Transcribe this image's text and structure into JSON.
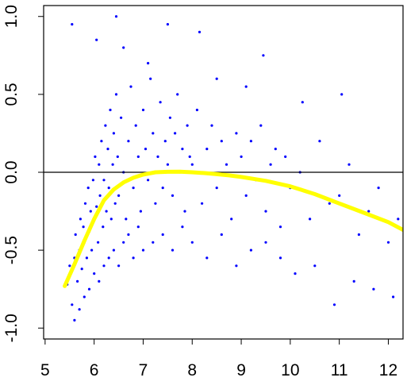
{
  "chart_data": {
    "type": "scatter",
    "title": "",
    "xlabel": "",
    "ylabel": "",
    "xlim": [
      4.97,
      12.3
    ],
    "ylim": [
      -1.07,
      1.07
    ],
    "xticks": [
      5,
      6,
      7,
      8,
      9,
      10,
      11,
      12
    ],
    "xtick_labels": [
      "5",
      "6",
      "7",
      "8",
      "9",
      "10",
      "11",
      "12"
    ],
    "yticks": [
      -1.0,
      -0.5,
      0.0,
      0.5,
      1.0
    ],
    "ytick_labels": [
      "-1.0",
      "-0.5",
      "0.0",
      "0.5",
      "1.0"
    ],
    "grid": false,
    "reference_line": {
      "y": 0,
      "color": "#000000"
    },
    "point_color": "#0000ff",
    "trend_color": "#ffff00",
    "series": [
      {
        "kind": "points",
        "x": [
          5.45,
          5.5,
          5.55,
          5.6,
          5.62,
          5.66,
          5.7,
          5.72,
          5.75,
          5.78,
          5.8,
          5.82,
          5.85,
          5.88,
          5.9,
          5.93,
          5.95,
          5.98,
          6.0,
          6.02,
          6.05,
          6.08,
          6.1,
          6.12,
          6.15,
          6.18,
          6.2,
          6.23,
          6.25,
          6.28,
          6.3,
          6.33,
          6.35,
          6.38,
          6.4,
          6.43,
          6.45,
          6.48,
          6.5,
          6.55,
          6.6,
          6.65,
          6.7,
          6.75,
          6.8,
          6.85,
          6.9,
          6.95,
          7.0,
          7.05,
          7.1,
          7.15,
          7.2,
          7.25,
          7.3,
          7.35,
          7.4,
          7.45,
          7.5,
          7.55,
          7.6,
          7.65,
          7.7,
          7.75,
          7.8,
          7.85,
          7.9,
          7.95,
          8.0,
          8.1,
          8.2,
          8.3,
          8.4,
          8.5,
          8.6,
          8.7,
          8.8,
          8.9,
          9.0,
          9.1,
          9.2,
          9.3,
          9.4,
          9.5,
          9.6,
          9.7,
          9.8,
          9.9,
          10.0,
          10.2,
          10.4,
          10.6,
          10.8,
          11.0,
          11.2,
          11.4,
          11.6,
          11.8,
          12.0,
          12.2,
          5.6,
          5.7,
          5.8,
          5.9,
          6.0,
          6.1,
          6.2,
          6.3,
          6.4,
          6.5,
          6.6,
          6.7,
          6.8,
          6.9,
          7.0,
          7.2,
          7.4,
          7.6,
          7.8,
          8.0,
          8.3,
          8.6,
          8.9,
          9.2,
          9.5,
          9.8,
          10.1,
          10.5,
          10.9,
          11.3,
          11.7,
          12.1,
          6.45,
          7.5,
          8.15,
          9.45,
          5.55,
          6.05,
          6.6,
          7.1,
          8.5,
          9.1,
          10.25,
          11.05
        ],
        "y": [
          -0.72,
          -0.6,
          -0.85,
          -0.55,
          -0.4,
          -0.7,
          -0.5,
          -0.3,
          -0.62,
          -0.35,
          -0.45,
          -0.2,
          -0.55,
          -0.1,
          -0.38,
          -0.25,
          -0.5,
          -0.05,
          -0.3,
          0.1,
          -0.22,
          -0.45,
          0.05,
          -0.15,
          0.2,
          -0.35,
          -0.05,
          0.3,
          -0.25,
          0.15,
          -0.1,
          0.4,
          -0.3,
          0.05,
          0.25,
          -0.2,
          0.5,
          0.1,
          -0.15,
          0.35,
          0.0,
          -0.3,
          0.2,
          0.55,
          -0.1,
          0.3,
          0.1,
          -0.25,
          0.4,
          0.15,
          -0.05,
          0.6,
          0.25,
          -0.2,
          0.1,
          0.45,
          -0.1,
          0.2,
          0.05,
          0.35,
          -0.15,
          0.25,
          0.5,
          0.0,
          0.15,
          -0.25,
          0.3,
          0.1,
          0.05,
          0.4,
          -0.2,
          0.15,
          0.3,
          -0.1,
          0.2,
          0.05,
          -0.3,
          0.25,
          0.1,
          -0.15,
          0.2,
          -0.05,
          0.3,
          -0.25,
          0.05,
          0.15,
          -0.35,
          0.1,
          -0.1,
          0.0,
          -0.3,
          0.2,
          -0.2,
          -0.15,
          0.05,
          -0.4,
          -0.25,
          -0.1,
          -0.45,
          -0.3,
          -0.95,
          -0.88,
          -0.8,
          -0.75,
          -0.65,
          -0.7,
          -0.6,
          -0.55,
          -0.5,
          -0.6,
          -0.45,
          -0.4,
          -0.55,
          -0.35,
          -0.5,
          -0.45,
          -0.4,
          -0.5,
          -0.35,
          -0.45,
          -0.55,
          -0.4,
          -0.6,
          -0.5,
          -0.45,
          -0.55,
          -0.65,
          -0.6,
          -0.85,
          -0.7,
          -0.75,
          -0.8,
          1.0,
          0.95,
          0.9,
          0.75,
          0.95,
          0.85,
          0.8,
          0.7,
          0.6,
          0.55,
          0.45,
          0.5
        ]
      },
      {
        "kind": "trend",
        "x": [
          5.4,
          5.6,
          5.8,
          6.0,
          6.2,
          6.4,
          6.6,
          6.8,
          7.0,
          7.25,
          7.5,
          7.75,
          8.0,
          8.25,
          8.5,
          8.75,
          9.0,
          9.5,
          10.0,
          10.5,
          11.0,
          11.5,
          12.0,
          12.3
        ],
        "y": [
          -0.73,
          -0.59,
          -0.44,
          -0.3,
          -0.18,
          -0.11,
          -0.065,
          -0.035,
          -0.015,
          0.0,
          0.003,
          0.004,
          0.0,
          -0.005,
          -0.012,
          -0.02,
          -0.03,
          -0.055,
          -0.09,
          -0.14,
          -0.2,
          -0.26,
          -0.32,
          -0.37
        ]
      }
    ]
  }
}
